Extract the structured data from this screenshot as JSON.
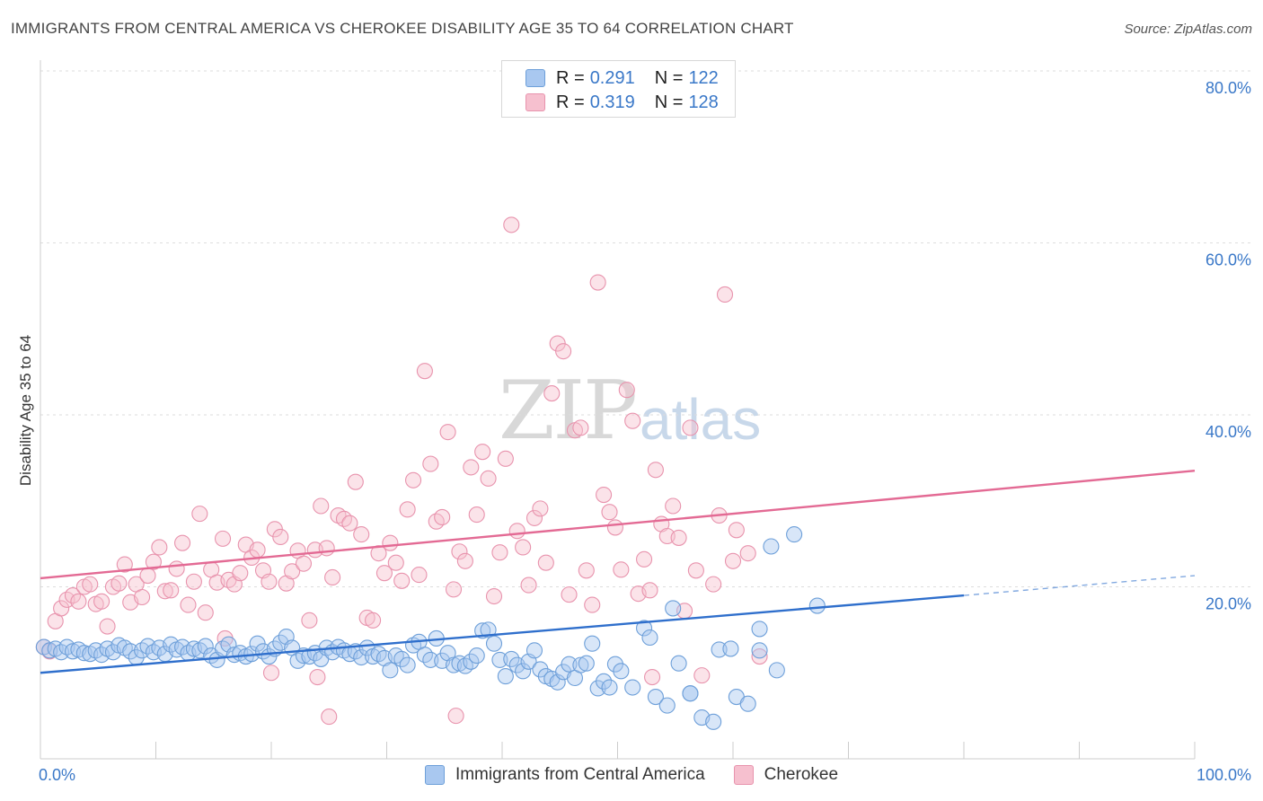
{
  "title": "IMMIGRANTS FROM CENTRAL AMERICA VS CHEROKEE DISABILITY AGE 35 TO 64 CORRELATION CHART",
  "source": "Source: ZipAtlas.com",
  "watermark": {
    "zip": "ZIP",
    "atlas": "atlas"
  },
  "legend": {
    "rows": [
      {
        "r_label": "R =",
        "r_value": "0.291",
        "n_label": "N =",
        "n_value": "122"
      },
      {
        "r_label": "R =",
        "r_value": "0.319",
        "n_label": "N =",
        "n_value": "128"
      }
    ]
  },
  "colors": {
    "blue_fill": "#a9c8f0",
    "blue_stroke": "#6d9fd9",
    "blue_line": "#2f6fcc",
    "pink_fill": "#f6c0cf",
    "pink_stroke": "#e893ad",
    "pink_line": "#e36a94",
    "tick_color": "#3a78c8",
    "grid": "#dddddd"
  },
  "chart_data": {
    "type": "scatter",
    "title": "IMMIGRANTS FROM CENTRAL AMERICA VS CHEROKEE DISABILITY AGE 35 TO 64 CORRELATION CHART",
    "xlabel": "",
    "ylabel": "Disability Age 35 to 64",
    "xlim": [
      0,
      100
    ],
    "ylim": [
      0,
      80
    ],
    "x_ticks": [
      "0.0%",
      "100.0%"
    ],
    "y_ticks": [
      {
        "value": 20,
        "label": "20.0%"
      },
      {
        "value": 40,
        "label": "40.0%"
      },
      {
        "value": 60,
        "label": "60.0%"
      },
      {
        "value": 80,
        "label": "80.0%"
      }
    ],
    "grid": true,
    "legend_position": "bottom",
    "series": [
      {
        "name": "Immigrants from Central America",
        "color": "#a9c8f0",
        "trend": {
          "x0": 0,
          "y0": 10.0,
          "x1": 80,
          "y1": 19.0,
          "dash_to_x": 100,
          "dash_to_y": 21.3
        },
        "points": [
          [
            0.3,
            13.0
          ],
          [
            0.8,
            12.6
          ],
          [
            1.3,
            12.8
          ],
          [
            1.8,
            12.4
          ],
          [
            2.3,
            13.0
          ],
          [
            2.8,
            12.5
          ],
          [
            3.3,
            12.7
          ],
          [
            3.8,
            12.3
          ],
          [
            4.3,
            12.2
          ],
          [
            4.8,
            12.6
          ],
          [
            5.3,
            12.1
          ],
          [
            5.8,
            12.8
          ],
          [
            6.3,
            12.4
          ],
          [
            6.8,
            13.2
          ],
          [
            7.3,
            12.9
          ],
          [
            7.8,
            12.5
          ],
          [
            8.3,
            11.8
          ],
          [
            8.8,
            12.6
          ],
          [
            9.3,
            13.1
          ],
          [
            9.8,
            12.4
          ],
          [
            10.3,
            12.9
          ],
          [
            10.8,
            12.2
          ],
          [
            11.3,
            13.3
          ],
          [
            11.8,
            12.7
          ],
          [
            12.3,
            13.0
          ],
          [
            12.8,
            12.3
          ],
          [
            13.3,
            12.8
          ],
          [
            13.8,
            12.6
          ],
          [
            14.3,
            13.1
          ],
          [
            14.8,
            12.0
          ],
          [
            15.3,
            11.5
          ],
          [
            15.8,
            12.8
          ],
          [
            16.3,
            13.3
          ],
          [
            16.8,
            12.1
          ],
          [
            17.3,
            12.3
          ],
          [
            17.8,
            11.9
          ],
          [
            18.3,
            12.2
          ],
          [
            18.8,
            13.4
          ],
          [
            19.3,
            12.5
          ],
          [
            19.8,
            11.9
          ],
          [
            20.3,
            12.8
          ],
          [
            20.8,
            13.5
          ],
          [
            21.3,
            14.2
          ],
          [
            21.8,
            12.9
          ],
          [
            22.3,
            11.4
          ],
          [
            22.8,
            12.0
          ],
          [
            23.3,
            11.9
          ],
          [
            23.8,
            12.3
          ],
          [
            24.3,
            11.6
          ],
          [
            24.8,
            12.9
          ],
          [
            25.3,
            12.4
          ],
          [
            25.8,
            13.0
          ],
          [
            26.3,
            12.6
          ],
          [
            26.8,
            12.2
          ],
          [
            27.3,
            12.5
          ],
          [
            27.8,
            11.8
          ],
          [
            28.3,
            12.9
          ],
          [
            28.8,
            11.9
          ],
          [
            29.3,
            12.2
          ],
          [
            29.8,
            11.7
          ],
          [
            30.3,
            10.3
          ],
          [
            30.8,
            12.0
          ],
          [
            31.3,
            11.6
          ],
          [
            31.8,
            10.9
          ],
          [
            32.3,
            13.2
          ],
          [
            32.8,
            13.6
          ],
          [
            33.3,
            12.1
          ],
          [
            33.8,
            11.5
          ],
          [
            34.3,
            14.0
          ],
          [
            34.8,
            11.4
          ],
          [
            35.3,
            12.3
          ],
          [
            35.8,
            10.9
          ],
          [
            36.3,
            11.1
          ],
          [
            36.8,
            10.8
          ],
          [
            37.3,
            11.3
          ],
          [
            37.8,
            12.0
          ],
          [
            38.3,
            14.9
          ],
          [
            38.8,
            15.0
          ],
          [
            39.3,
            13.4
          ],
          [
            39.8,
            11.5
          ],
          [
            40.3,
            9.6
          ],
          [
            40.8,
            11.6
          ],
          [
            41.3,
            10.9
          ],
          [
            41.8,
            10.2
          ],
          [
            42.3,
            11.3
          ],
          [
            42.8,
            12.6
          ],
          [
            43.3,
            10.4
          ],
          [
            43.8,
            9.6
          ],
          [
            44.3,
            9.3
          ],
          [
            44.8,
            8.9
          ],
          [
            45.3,
            10.1
          ],
          [
            45.8,
            11.0
          ],
          [
            46.3,
            9.4
          ],
          [
            46.8,
            10.9
          ],
          [
            47.3,
            11.1
          ],
          [
            47.8,
            13.4
          ],
          [
            48.3,
            8.2
          ],
          [
            48.8,
            9.0
          ],
          [
            49.3,
            8.3
          ],
          [
            49.8,
            11.0
          ],
          [
            50.3,
            10.2
          ],
          [
            51.3,
            8.3
          ],
          [
            52.3,
            15.2
          ],
          [
            52.8,
            14.1
          ],
          [
            53.3,
            7.2
          ],
          [
            54.3,
            6.2
          ],
          [
            54.8,
            17.5
          ],
          [
            55.3,
            11.1
          ],
          [
            56.3,
            7.6
          ],
          [
            56.3,
            7.6
          ],
          [
            57.3,
            4.8
          ],
          [
            58.3,
            4.3
          ],
          [
            58.8,
            12.7
          ],
          [
            59.8,
            12.8
          ],
          [
            60.3,
            7.2
          ],
          [
            61.3,
            6.4
          ],
          [
            62.3,
            15.1
          ],
          [
            62.3,
            12.6
          ],
          [
            63.3,
            24.7
          ],
          [
            63.8,
            10.3
          ],
          [
            65.3,
            26.1
          ],
          [
            67.3,
            17.8
          ]
        ]
      },
      {
        "name": "Cherokee",
        "color": "#f6c0cf",
        "trend": {
          "x0": 0,
          "y0": 21.0,
          "x1": 100,
          "y1": 33.5
        },
        "points": [
          [
            0.3,
            13.0
          ],
          [
            0.8,
            12.5
          ],
          [
            1.3,
            16.0
          ],
          [
            1.8,
            17.5
          ],
          [
            2.3,
            18.5
          ],
          [
            2.8,
            19.0
          ],
          [
            3.3,
            18.3
          ],
          [
            3.8,
            20.0
          ],
          [
            4.3,
            20.3
          ],
          [
            4.8,
            18.0
          ],
          [
            5.3,
            18.3
          ],
          [
            5.8,
            15.4
          ],
          [
            6.3,
            20.0
          ],
          [
            6.8,
            20.4
          ],
          [
            7.3,
            22.6
          ],
          [
            7.8,
            18.2
          ],
          [
            8.3,
            20.3
          ],
          [
            8.8,
            18.8
          ],
          [
            9.3,
            21.3
          ],
          [
            9.8,
            22.9
          ],
          [
            10.3,
            24.6
          ],
          [
            10.8,
            19.5
          ],
          [
            11.3,
            19.6
          ],
          [
            11.8,
            22.1
          ],
          [
            12.3,
            25.1
          ],
          [
            12.8,
            17.9
          ],
          [
            13.3,
            20.6
          ],
          [
            13.8,
            28.5
          ],
          [
            14.3,
            17.0
          ],
          [
            14.8,
            22.0
          ],
          [
            15.3,
            20.5
          ],
          [
            15.8,
            25.6
          ],
          [
            16.3,
            20.8
          ],
          [
            16.8,
            20.3
          ],
          [
            17.3,
            21.6
          ],
          [
            17.8,
            24.9
          ],
          [
            18.3,
            23.4
          ],
          [
            18.8,
            24.3
          ],
          [
            19.3,
            21.9
          ],
          [
            19.8,
            20.6
          ],
          [
            20.3,
            26.7
          ],
          [
            20.8,
            25.8
          ],
          [
            21.3,
            20.4
          ],
          [
            21.8,
            21.8
          ],
          [
            22.3,
            24.2
          ],
          [
            22.8,
            22.7
          ],
          [
            23.3,
            16.1
          ],
          [
            23.8,
            24.3
          ],
          [
            24.3,
            29.4
          ],
          [
            24.8,
            24.5
          ],
          [
            25.3,
            21.1
          ],
          [
            25.8,
            28.3
          ],
          [
            26.3,
            27.9
          ],
          [
            26.8,
            27.4
          ],
          [
            27.3,
            32.2
          ],
          [
            27.8,
            26.1
          ],
          [
            28.3,
            16.4
          ],
          [
            28.8,
            16.1
          ],
          [
            29.3,
            23.9
          ],
          [
            29.8,
            21.6
          ],
          [
            30.3,
            25.1
          ],
          [
            30.8,
            22.8
          ],
          [
            31.3,
            20.7
          ],
          [
            31.8,
            29.0
          ],
          [
            32.3,
            32.4
          ],
          [
            32.8,
            21.4
          ],
          [
            33.3,
            45.1
          ],
          [
            33.8,
            34.3
          ],
          [
            34.3,
            27.6
          ],
          [
            34.8,
            28.1
          ],
          [
            35.3,
            38.0
          ],
          [
            35.8,
            19.7
          ],
          [
            36.3,
            24.1
          ],
          [
            36.8,
            23.0
          ],
          [
            37.3,
            33.9
          ],
          [
            37.8,
            28.4
          ],
          [
            38.3,
            35.7
          ],
          [
            38.8,
            32.6
          ],
          [
            39.3,
            18.9
          ],
          [
            39.8,
            24.0
          ],
          [
            40.3,
            34.9
          ],
          [
            40.8,
            62.1
          ],
          [
            41.3,
            26.5
          ],
          [
            41.8,
            24.6
          ],
          [
            42.3,
            20.2
          ],
          [
            42.8,
            28.0
          ],
          [
            43.3,
            29.1
          ],
          [
            43.8,
            22.8
          ],
          [
            44.3,
            42.5
          ],
          [
            44.8,
            48.3
          ],
          [
            45.3,
            47.4
          ],
          [
            45.8,
            19.1
          ],
          [
            46.3,
            38.2
          ],
          [
            46.8,
            38.5
          ],
          [
            47.3,
            21.9
          ],
          [
            47.8,
            17.9
          ],
          [
            48.3,
            55.4
          ],
          [
            48.8,
            30.7
          ],
          [
            49.3,
            28.7
          ],
          [
            49.8,
            26.9
          ],
          [
            50.3,
            22.0
          ],
          [
            50.8,
            42.9
          ],
          [
            51.3,
            39.3
          ],
          [
            51.8,
            19.2
          ],
          [
            52.3,
            23.2
          ],
          [
            52.8,
            19.6
          ],
          [
            53.3,
            33.6
          ],
          [
            53.8,
            27.3
          ],
          [
            54.3,
            25.9
          ],
          [
            54.8,
            29.4
          ],
          [
            55.3,
            25.7
          ],
          [
            55.8,
            17.2
          ],
          [
            56.3,
            38.5
          ],
          [
            56.8,
            21.9
          ],
          [
            57.3,
            9.7
          ],
          [
            58.3,
            20.3
          ],
          [
            58.8,
            28.3
          ],
          [
            59.3,
            54.0
          ],
          [
            60.3,
            26.6
          ],
          [
            61.3,
            23.9
          ],
          [
            62.3,
            11.9
          ],
          [
            25.0,
            4.9
          ],
          [
            36.0,
            5.0
          ],
          [
            24.0,
            9.5
          ],
          [
            53.0,
            9.5
          ],
          [
            20.0,
            10.0
          ],
          [
            16.0,
            14.0
          ],
          [
            60.0,
            23.0
          ]
        ]
      }
    ]
  }
}
